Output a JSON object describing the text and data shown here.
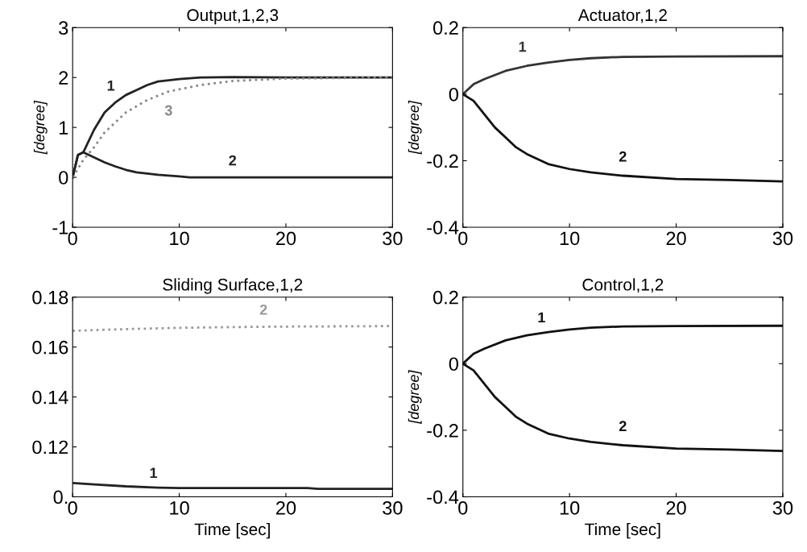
{
  "chart_data": [
    {
      "type": "line",
      "title": "Output,1,2,3",
      "ylabel": "[degree]",
      "xlim": [
        0,
        30
      ],
      "xticks": [
        0,
        10,
        20,
        30
      ],
      "ylim": [
        -1,
        3
      ],
      "yticks": [
        -1,
        0,
        1,
        2,
        3
      ],
      "grid": false,
      "series": [
        {
          "name": "1",
          "color": "#222222",
          "x": [
            0,
            0.5,
            1,
            2,
            3,
            4,
            5,
            6,
            7,
            8,
            10,
            12,
            15,
            20,
            30
          ],
          "values": [
            0,
            0.45,
            0.5,
            0.95,
            1.3,
            1.5,
            1.65,
            1.75,
            1.85,
            1.92,
            1.97,
            2.0,
            2.01,
            2.0,
            2.0
          ]
        },
        {
          "name": "2",
          "color": "#222222",
          "x": [
            0,
            0.5,
            1,
            2,
            3,
            4,
            5,
            6,
            8,
            10,
            11,
            15,
            30
          ],
          "values": [
            0,
            0.45,
            0.5,
            0.4,
            0.3,
            0.22,
            0.15,
            0.1,
            0.05,
            0.02,
            0,
            0,
            0
          ]
        },
        {
          "name": "3",
          "color": "#888888",
          "line_style": "dotted",
          "x": [
            0,
            1,
            2,
            3,
            4,
            5,
            7,
            9,
            12,
            15,
            20,
            30
          ],
          "values": [
            0,
            0.35,
            0.6,
            0.9,
            1.1,
            1.3,
            1.55,
            1.72,
            1.85,
            1.93,
            1.98,
            2.0
          ]
        }
      ]
    },
    {
      "type": "line",
      "title": "Actuator,1,2",
      "ylabel": "[degree]",
      "xlim": [
        0,
        30
      ],
      "xticks": [
        0,
        10,
        20,
        30
      ],
      "ylim": [
        -0.4,
        0.2
      ],
      "yticks": [
        -0.4,
        -0.2,
        0,
        0.2
      ],
      "grid": false,
      "series": [
        {
          "name": "1",
          "color": "#333333",
          "x": [
            0,
            1,
            2,
            4,
            6,
            8,
            10,
            12,
            15,
            20,
            30
          ],
          "values": [
            0,
            0.03,
            0.045,
            0.07,
            0.085,
            0.095,
            0.103,
            0.108,
            0.112,
            0.113,
            0.114
          ]
        },
        {
          "name": "2",
          "color": "#111111",
          "x": [
            0,
            1,
            2,
            3,
            4,
            5,
            6,
            8,
            10,
            12,
            15,
            20,
            25,
            30
          ],
          "values": [
            0,
            -0.02,
            -0.06,
            -0.1,
            -0.13,
            -0.16,
            -0.18,
            -0.21,
            -0.225,
            -0.235,
            -0.245,
            -0.255,
            -0.258,
            -0.262
          ]
        }
      ]
    },
    {
      "type": "line",
      "title": "Sliding Surface,1,2",
      "xlabel": "Time [sec]",
      "xlim": [
        0,
        30
      ],
      "xticks": [
        0,
        10,
        20,
        30
      ],
      "ylim": [
        0.1,
        0.18
      ],
      "yticks": [
        {
          "value": 0.1,
          "label": "0."
        },
        0.12,
        0.14,
        0.16,
        0.18
      ],
      "grid": false,
      "series": [
        {
          "name": "1",
          "color": "#222222",
          "x": [
            0,
            2,
            5,
            8,
            10,
            15,
            20,
            22,
            23,
            30
          ],
          "values": [
            0.1055,
            0.105,
            0.1042,
            0.1037,
            0.1035,
            0.1035,
            0.1035,
            0.1035,
            0.1032,
            0.1032
          ]
        },
        {
          "name": "2",
          "color": "#999999",
          "line_style": "dotted",
          "x": [
            0,
            2,
            5,
            10,
            15,
            20,
            25,
            30
          ],
          "values": [
            0.1665,
            0.1668,
            0.1672,
            0.1677,
            0.168,
            0.1682,
            0.1683,
            0.1684
          ]
        }
      ]
    },
    {
      "type": "line",
      "title": "Control,1,2",
      "xlabel": "Time [sec]",
      "ylabel": "[degree]",
      "xlim": [
        0,
        30
      ],
      "xticks": [
        0,
        10,
        20,
        30
      ],
      "ylim": [
        -0.4,
        0.2
      ],
      "yticks": [
        -0.4,
        -0.2,
        0,
        0.2
      ],
      "grid": false,
      "series": [
        {
          "name": "1",
          "color": "#111111",
          "x": [
            0,
            1,
            2,
            4,
            6,
            8,
            10,
            12,
            15,
            20,
            30
          ],
          "values": [
            0,
            0.03,
            0.045,
            0.07,
            0.085,
            0.095,
            0.103,
            0.108,
            0.112,
            0.113,
            0.114
          ]
        },
        {
          "name": "2",
          "color": "#111111",
          "x": [
            0,
            1,
            2,
            3,
            4,
            5,
            6,
            8,
            10,
            12,
            15,
            20,
            25,
            30
          ],
          "values": [
            0,
            -0.02,
            -0.06,
            -0.1,
            -0.13,
            -0.16,
            -0.18,
            -0.21,
            -0.225,
            -0.235,
            -0.245,
            -0.255,
            -0.258,
            -0.262
          ]
        }
      ]
    }
  ]
}
